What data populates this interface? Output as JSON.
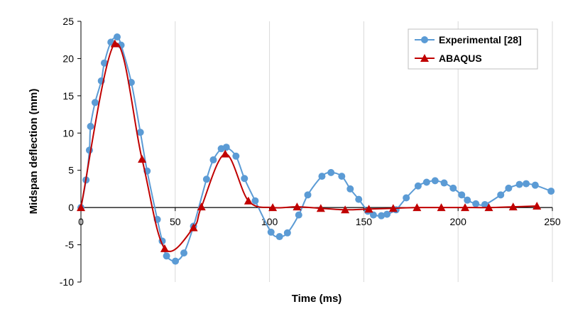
{
  "chart_data": {
    "type": "line",
    "title": "",
    "xlabel": "Time (ms)",
    "ylabel": "Midspan deflection (mm)",
    "xlim": [
      0,
      250
    ],
    "ylim": [
      -10,
      25
    ],
    "xticks": [
      0,
      50,
      100,
      150,
      200,
      250
    ],
    "yticks": [
      -10,
      -5,
      0,
      5,
      10,
      15,
      20,
      25
    ],
    "grid": "vertical",
    "legend_position": "top-right",
    "series": [
      {
        "name": "Experimental [28]",
        "color": "#5b9bd5",
        "marker": "circle",
        "x": [
          0,
          2.7,
          4.5,
          5.1,
          7.5,
          10.8,
          12.4,
          15.9,
          19.2,
          21.3,
          26.7,
          31.5,
          35.1,
          40.5,
          43.1,
          45.4,
          50.1,
          54.6,
          59.7,
          66.6,
          70.2,
          74.4,
          77.1,
          82.2,
          86.7,
          92.4,
          100.8,
          105.3,
          109.5,
          115.5,
          120.3,
          127.8,
          132.6,
          138.3,
          142.8,
          147.3,
          152.1,
          155.1,
          159.3,
          162.3,
          167.1,
          172.5,
          178.8,
          183.3,
          187.8,
          192.6,
          197.4,
          201.9,
          204.9,
          209.4,
          214.2,
          222.6,
          226.8,
          232.5,
          236.1,
          240.9,
          249.3
        ],
        "y": [
          0,
          3.7,
          7.7,
          10.9,
          14.1,
          17.0,
          19.4,
          22.2,
          22.9,
          21.8,
          16.8,
          10.1,
          4.9,
          -1.6,
          -4.5,
          -6.5,
          -7.2,
          -6.1,
          -2.5,
          3.8,
          6.4,
          7.9,
          8.1,
          6.9,
          3.9,
          0.9,
          -3.3,
          -3.9,
          -3.4,
          -1.0,
          1.7,
          4.2,
          4.7,
          4.2,
          2.5,
          1.1,
          -0.5,
          -1.0,
          -1.1,
          -0.9,
          -0.3,
          1.3,
          2.9,
          3.4,
          3.6,
          3.3,
          2.6,
          1.7,
          1.0,
          0.5,
          0.4,
          1.7,
          2.6,
          3.1,
          3.2,
          3.0,
          2.2
        ]
      },
      {
        "name": "ABAQUS",
        "color": "#c00000",
        "marker": "triangle",
        "x": [
          0,
          18.0,
          32.4,
          44.4,
          59.7,
          63.9,
          76.5,
          88.8,
          101.7,
          114.6,
          127.2,
          140.1,
          152.7,
          165.6,
          178.2,
          191.1,
          203.7,
          216.3,
          229.2,
          241.8
        ],
        "y": [
          0,
          22.0,
          6.5,
          -5.5,
          -2.7,
          0.1,
          7.2,
          0.9,
          0.0,
          0.1,
          -0.1,
          -0.3,
          -0.2,
          -0.1,
          0.0,
          0.0,
          0.0,
          0.0,
          0.1,
          0.2
        ]
      }
    ]
  }
}
